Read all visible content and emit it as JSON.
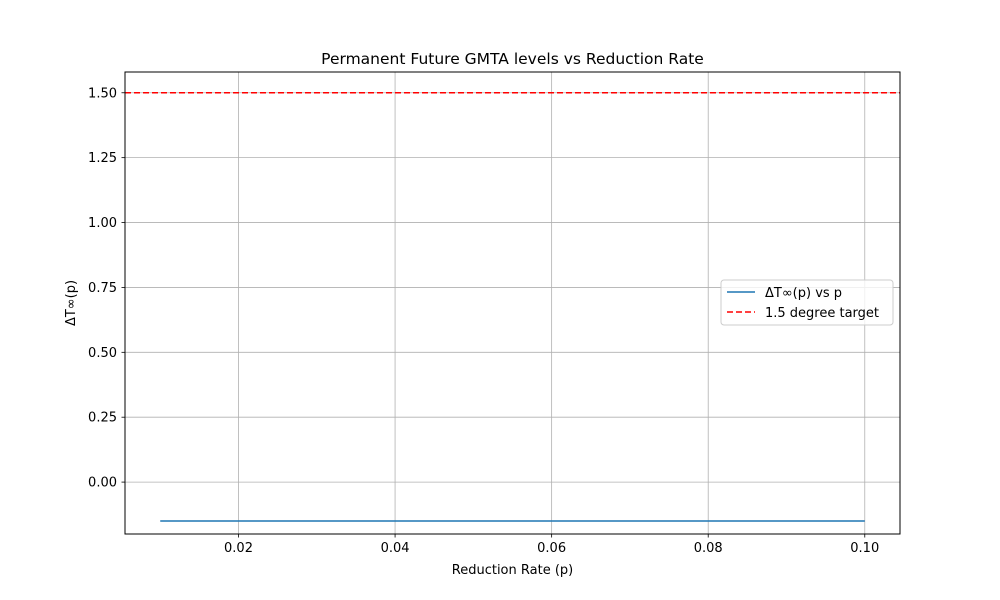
{
  "chart_data": {
    "type": "line",
    "title": "Permanent Future GMTA levels vs Reduction Rate",
    "xlabel": "Reduction Rate (p)",
    "ylabel": "ΔT∞(p)",
    "xlim": [
      0.0055,
      0.1045
    ],
    "ylim": [
      -0.2,
      1.58
    ],
    "xticks": [
      0.02,
      0.04,
      0.06,
      0.08,
      0.1
    ],
    "xtick_labels": [
      "0.02",
      "0.04",
      "0.06",
      "0.08",
      "0.10"
    ],
    "yticks": [
      0.0,
      0.25,
      0.5,
      0.75,
      1.0,
      1.25,
      1.5
    ],
    "ytick_labels": [
      "0.00",
      "0.25",
      "0.50",
      "0.75",
      "1.00",
      "1.25",
      "1.50"
    ],
    "grid": true,
    "legend_position": "center-right",
    "series": [
      {
        "name": "ΔT∞(p) vs p",
        "color": "#1f77b4",
        "style": "solid",
        "x": [
          0.01,
          0.02,
          0.03,
          0.04,
          0.05,
          0.06,
          0.07,
          0.08,
          0.09,
          0.1
        ],
        "y": [
          -0.15,
          -0.15,
          -0.15,
          -0.15,
          -0.15,
          -0.15,
          -0.15,
          -0.15,
          -0.15,
          -0.15
        ]
      }
    ],
    "hlines": [
      {
        "name": "1.5 degree target",
        "y": 1.5,
        "color": "#ff0000",
        "style": "dashed"
      }
    ]
  }
}
